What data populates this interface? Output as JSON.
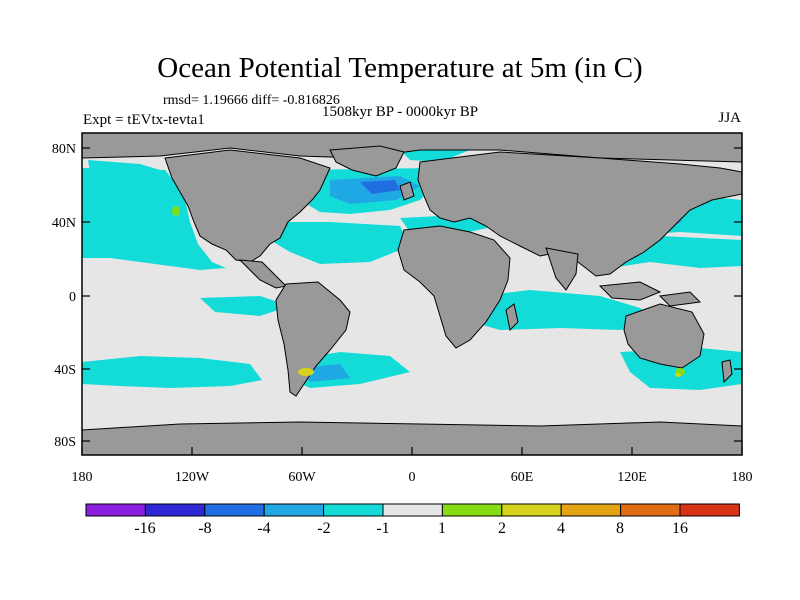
{
  "title": "Ocean Potential Temperature at 5m (in C)",
  "stats": "rmsd= 1.19666 diff= -0.816826",
  "experiment": "Expt = tEVtx-tevta1",
  "period": "1508kyr BP - 0000kyr BP",
  "season": "JJA",
  "lat_labels": [
    "80N",
    "40N",
    "0",
    "40S",
    "80S"
  ],
  "lon_labels": [
    "180",
    "120W",
    "60W",
    "0",
    "60E",
    "120E",
    "180"
  ],
  "colorbar": {
    "colors": [
      "#8c1ee0",
      "#2f27d6",
      "#1f6fe3",
      "#20a8e4",
      "#13dcd8",
      "#e6e6e6",
      "#86dc14",
      "#d7d21b",
      "#e3a313",
      "#e06c14",
      "#d93416"
    ],
    "labels": [
      "-16",
      "-8",
      "-4",
      "-2",
      "-1",
      "1",
      "2",
      "4",
      "8",
      "16"
    ]
  },
  "legend_colors": {
    "land": "#999999",
    "neutral": "#e6e6e6",
    "cyan": "#13dcd8",
    "light_blue": "#20a8e4",
    "blue": "#1f6fe3",
    "green": "#86dc14",
    "yellow": "#d7d21b"
  }
}
